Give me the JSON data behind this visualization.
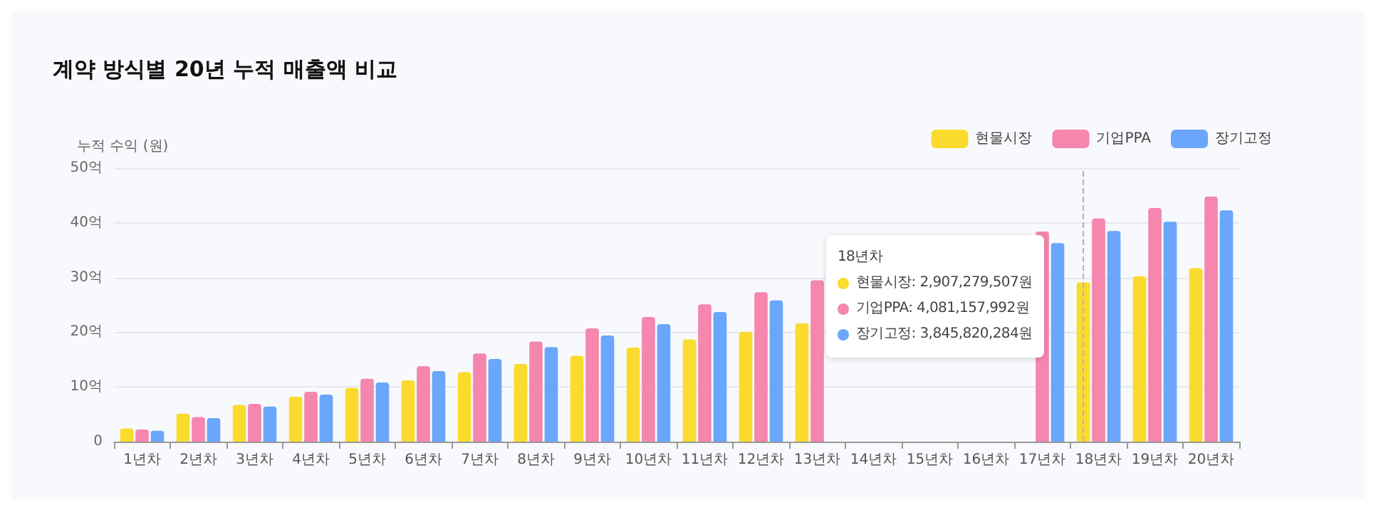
{
  "chart_data": {
    "type": "bar",
    "title": "계약 방식별 20년 누적 매출액 비교",
    "ylabel": "누적 수익 (원)",
    "categories": [
      "1년차",
      "2년차",
      "3년차",
      "4년차",
      "5년차",
      "6년차",
      "7년차",
      "8년차",
      "9년차",
      "10년차",
      "11년차",
      "12년차",
      "13년차",
      "14년차",
      "15년차",
      "16년차",
      "17년차",
      "18년차",
      "19년차",
      "20년차"
    ],
    "series": [
      {
        "name": "현물시장",
        "color": "#fadb2e",
        "values": [
          2.4,
          5.1,
          6.7,
          8.2,
          9.8,
          11.2,
          12.7,
          14.2,
          15.7,
          17.2,
          18.7,
          20.1,
          21.6,
          null,
          null,
          null,
          null,
          29.1,
          30.2,
          31.7
        ]
      },
      {
        "name": "기업PPA",
        "color": "#f586ae",
        "values": [
          2.2,
          4.5,
          6.9,
          9.1,
          11.5,
          13.8,
          16.1,
          18.3,
          20.7,
          22.8,
          25.1,
          27.3,
          29.5,
          null,
          null,
          null,
          38.4,
          40.8,
          42.7,
          44.8
        ]
      },
      {
        "name": "장기고정",
        "color": "#6aa6fb",
        "values": [
          2.0,
          4.3,
          6.4,
          8.6,
          10.8,
          12.9,
          15.1,
          17.3,
          19.4,
          21.5,
          23.7,
          25.8,
          null,
          null,
          null,
          null,
          36.3,
          38.5,
          40.2,
          42.3
        ]
      }
    ],
    "ylim": [
      0,
      50
    ],
    "yticks": [
      0,
      {
        "value": 10,
        "label": "10억"
      },
      {
        "value": 20,
        "label": "20억"
      },
      {
        "value": 30,
        "label": "30억"
      },
      {
        "value": 40,
        "label": "40억"
      },
      {
        "value": 50,
        "label": "50억"
      }
    ],
    "grid": "y",
    "legend": "top right",
    "ref_lines": [
      {
        "axis": "x",
        "value": "18년차",
        "color": "#b0b4bc",
        "line_style": "dashed"
      }
    ],
    "annotations": [
      "18년차",
      "현물시장: 2,907,279,507원",
      "기업PPA: 4,081,157,992원",
      "장기고정: 3,845,820,284원"
    ]
  }
}
